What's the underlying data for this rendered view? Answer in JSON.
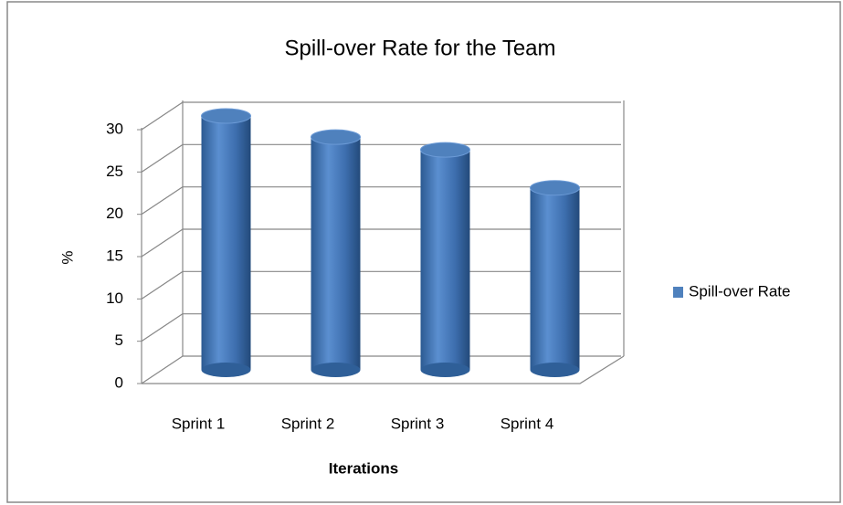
{
  "chart_data": {
    "type": "bar",
    "title": "Spill-over Rate for the Team",
    "x_label": "Iterations",
    "y_label": "%",
    "categories": [
      "Sprint 1",
      "Sprint 2",
      "Sprint 3",
      "Sprint 4"
    ],
    "series": [
      {
        "name": "Spill-over Rate",
        "color": "#4f81bd",
        "values": [
          30,
          27.5,
          26,
          21.5
        ]
      }
    ],
    "ylim": [
      0,
      30
    ],
    "yticks": [
      0,
      5,
      10,
      15,
      20,
      25,
      30
    ],
    "grid": true,
    "legend": "right"
  }
}
